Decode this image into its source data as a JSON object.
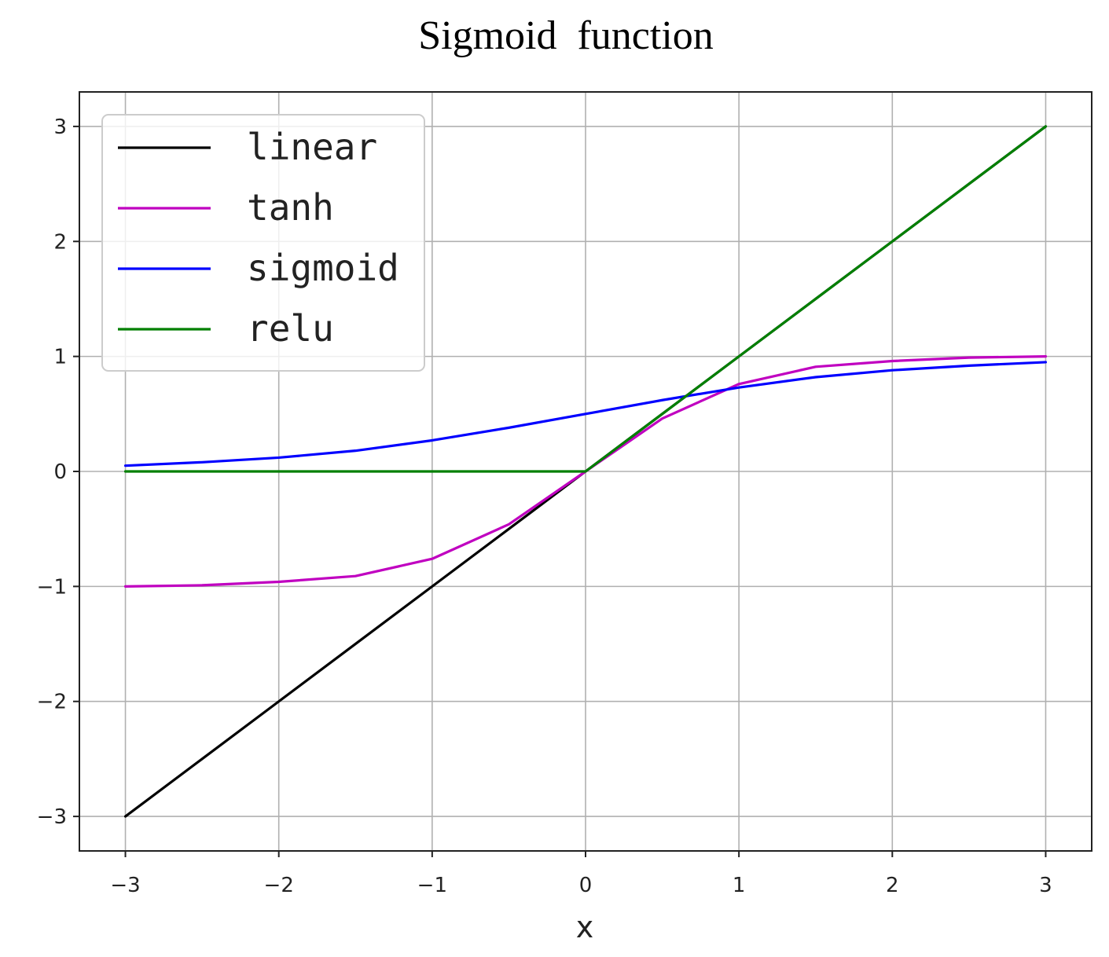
{
  "chart_data": {
    "type": "line",
    "title": "Sigmoid  function",
    "xlabel": "x",
    "ylabel": "",
    "xlim": [
      -3.3,
      3.3
    ],
    "ylim": [
      -3.3,
      3.3
    ],
    "x_ticks": [
      -3,
      -2,
      -1,
      0,
      1,
      2,
      3
    ],
    "y_ticks": [
      -3,
      -2,
      -1,
      0,
      1,
      2,
      3
    ],
    "x_tick_labels": [
      "−3",
      "−2",
      "−1",
      "0",
      "1",
      "2",
      "3"
    ],
    "y_tick_labels": [
      "−3",
      "−2",
      "−1",
      "0",
      "1",
      "2",
      "3"
    ],
    "grid": true,
    "legend_position": "upper-left",
    "x": [
      -3,
      -2.5,
      -2,
      -1.5,
      -1,
      -0.5,
      0,
      0.5,
      1,
      1.5,
      2,
      2.5,
      3
    ],
    "series": [
      {
        "name": "linear",
        "color": "#000000",
        "values": [
          -3,
          -2.5,
          -2,
          -1.5,
          -1,
          -0.5,
          0,
          0.5,
          1,
          1.5,
          2,
          2.5,
          3
        ]
      },
      {
        "name": "tanh",
        "color": "#c000c0",
        "values": [
          -1.0,
          -0.99,
          -0.96,
          -0.91,
          -0.76,
          -0.46,
          0,
          0.46,
          0.76,
          0.91,
          0.96,
          0.99,
          1.0
        ]
      },
      {
        "name": "sigmoid",
        "color": "#0000ff",
        "values": [
          0.05,
          0.08,
          0.12,
          0.18,
          0.27,
          0.38,
          0.5,
          0.62,
          0.73,
          0.82,
          0.88,
          0.92,
          0.95
        ]
      },
      {
        "name": "relu",
        "color": "#007f00",
        "values": [
          0,
          0,
          0,
          0,
          0,
          0,
          0,
          0.5,
          1,
          1.5,
          2,
          2.5,
          3
        ]
      }
    ]
  }
}
